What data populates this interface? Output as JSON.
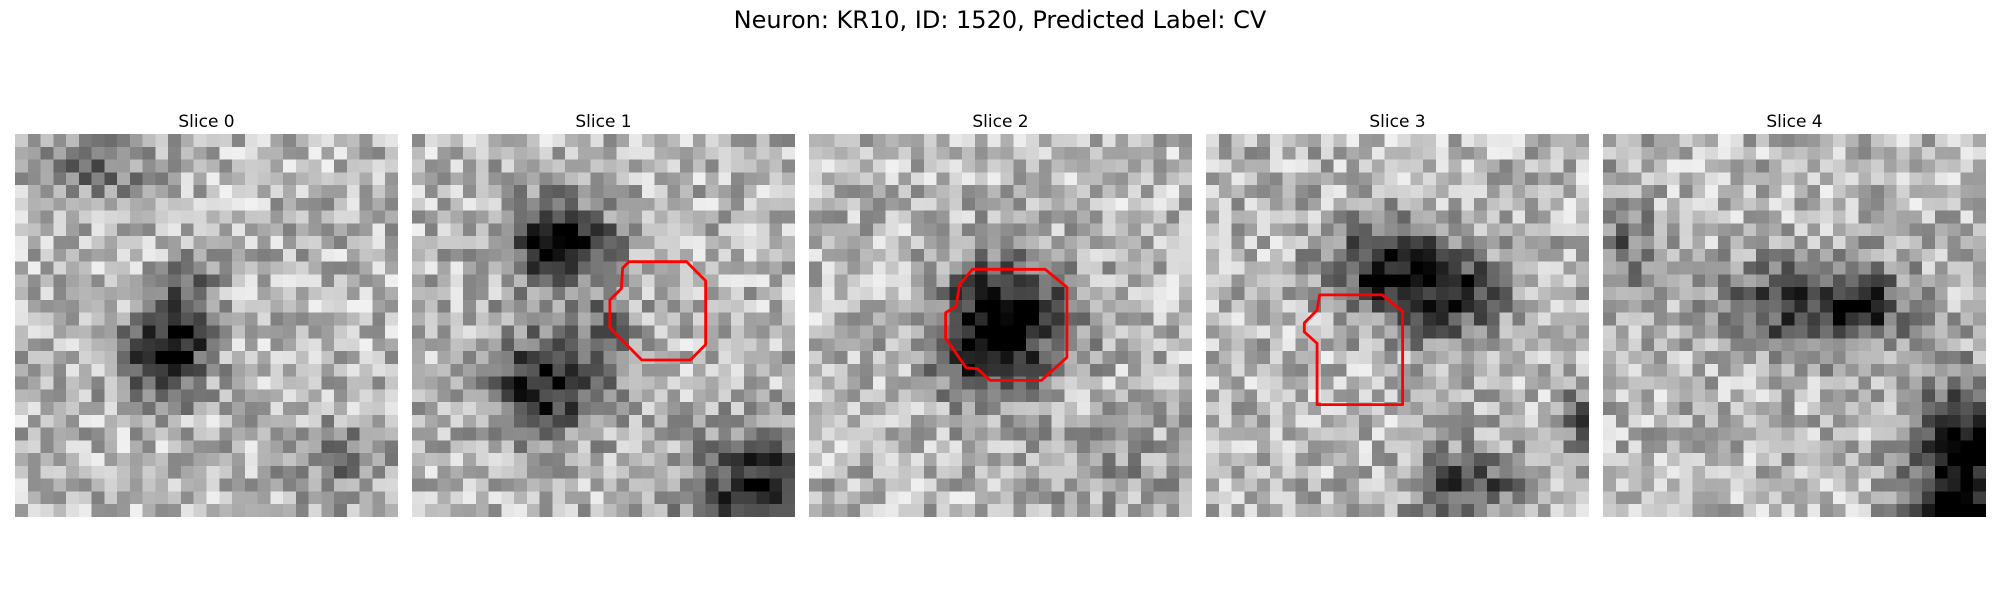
{
  "figure": {
    "title": "Neuron: KR10, ID: 1520, Predicted Label: CV"
  },
  "style": {
    "contour_color": "#ff0000",
    "colormap": "gray"
  },
  "slices": [
    {
      "label": "Slice 0",
      "roi_visible": false
    },
    {
      "label": "Slice 1",
      "roi_visible": true
    },
    {
      "label": "Slice 2",
      "roi_visible": true
    },
    {
      "label": "Slice 3",
      "roi_visible": true
    },
    {
      "label": "Slice 4",
      "roi_visible": false
    }
  ]
}
